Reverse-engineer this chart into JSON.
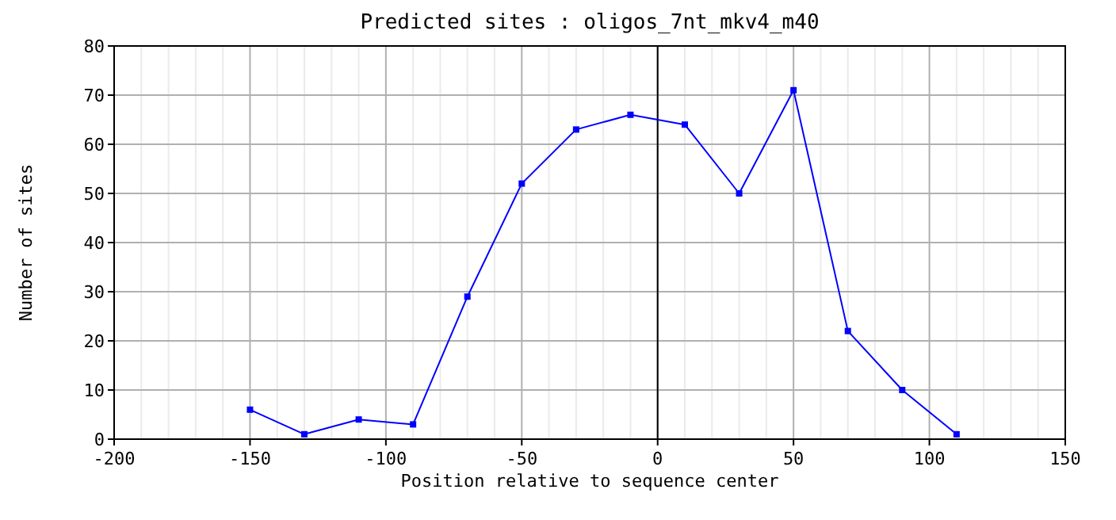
{
  "chart_data": {
    "type": "line",
    "title": "Predicted sites : oligos_7nt_mkv4_m40",
    "xlabel": "Position relative to sequence center",
    "ylabel": "Number of sites",
    "x": [
      -150,
      -130,
      -110,
      -90,
      -70,
      -50,
      -30,
      -10,
      10,
      30,
      50,
      70,
      90,
      110
    ],
    "series": [
      {
        "color": "#0000ff",
        "values": [
          6,
          1,
          4,
          3,
          29,
          52,
          63,
          66,
          64,
          50,
          71,
          22,
          10,
          1
        ]
      }
    ],
    "xlim": [
      -200,
      150
    ],
    "ylim": [
      0,
      80
    ],
    "xticks": [
      -200,
      {
        "value": -190,
        "label": null
      },
      {
        "value": -180,
        "label": null
      },
      {
        "value": -170,
        "label": null
      },
      {
        "value": -160,
        "label": null
      },
      -150,
      {
        "value": -140,
        "label": null
      },
      {
        "value": -130,
        "label": null
      },
      {
        "value": -120,
        "label": null
      },
      {
        "value": -110,
        "label": null
      },
      -100,
      {
        "value": -90,
        "label": null
      },
      {
        "value": -80,
        "label": null
      },
      {
        "value": -70,
        "label": null
      },
      {
        "value": -60,
        "label": null
      },
      -50,
      {
        "value": -40,
        "label": null
      },
      {
        "value": -30,
        "label": null
      },
      {
        "value": -20,
        "label": null
      },
      {
        "value": -10,
        "label": null
      },
      0,
      {
        "value": 10,
        "label": null
      },
      {
        "value": 20,
        "label": null
      },
      {
        "value": 30,
        "label": null
      },
      {
        "value": 40,
        "label": null
      },
      50,
      {
        "value": 60,
        "label": null
      },
      {
        "value": 70,
        "label": null
      },
      {
        "value": 80,
        "label": null
      },
      {
        "value": 90,
        "label": null
      },
      100,
      {
        "value": 110,
        "label": null
      },
      {
        "value": 120,
        "label": null
      },
      {
        "value": 130,
        "label": null
      },
      {
        "value": 140,
        "label": null
      },
      150
    ],
    "yticks": [
      0,
      10,
      20,
      30,
      40,
      50,
      60,
      70,
      80
    ],
    "ref_lines": [
      {
        "axis": "x",
        "value": 0,
        "color": "#000000"
      }
    ],
    "grid": true,
    "marker": "square",
    "line_style": "solid"
  }
}
